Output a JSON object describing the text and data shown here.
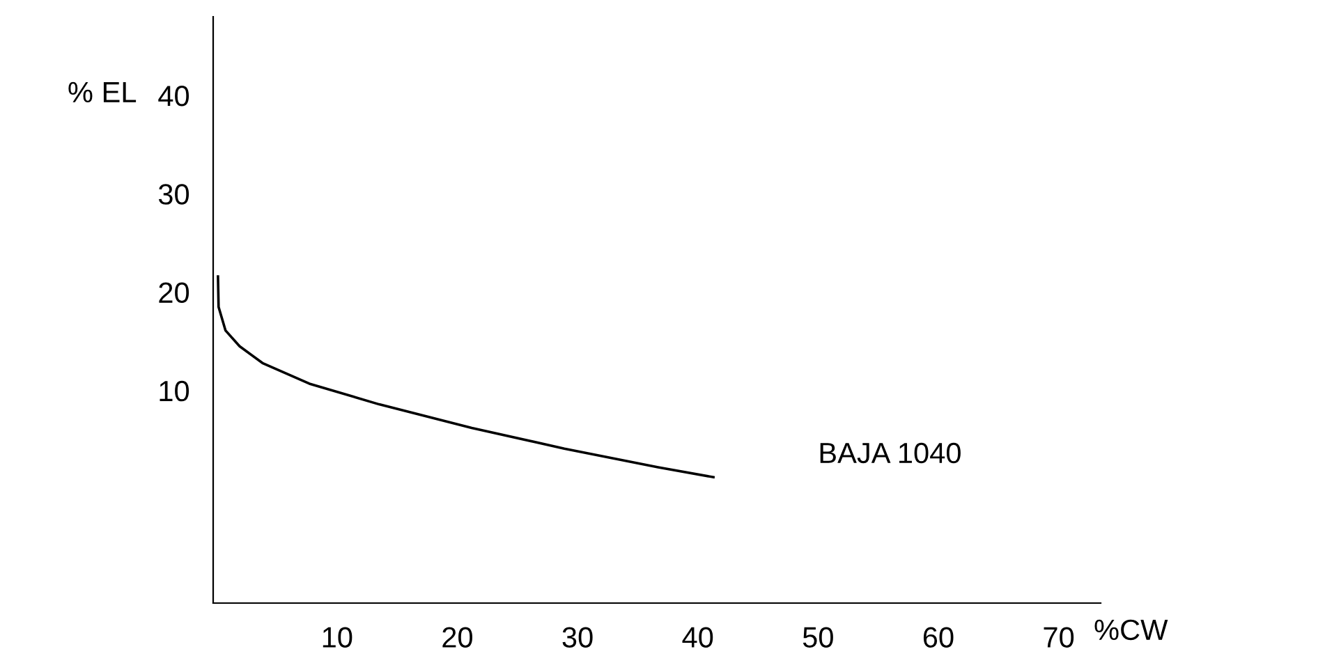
{
  "chart_data": {
    "type": "line",
    "xlabel": "%CW",
    "ylabel": "% EL",
    "series": [
      {
        "name": "BAJA 1040",
        "color": "#000000",
        "x": [
          0.1,
          0.15,
          0.73,
          1.9,
          3.8,
          7.7,
          13.5,
          21.2,
          28.9,
          36.7,
          41.3
        ],
        "values": [
          21.6,
          18.5,
          16.1,
          14.5,
          12.8,
          10.7,
          8.6,
          6.2,
          4.1,
          2.2,
          1.2
        ]
      }
    ],
    "xlim": [
      -0.3,
      73.5
    ],
    "ylim": [
      -11.6,
      48
    ],
    "xticks": [
      10,
      20,
      30,
      40,
      50,
      60,
      70
    ],
    "yticks": [
      10,
      20,
      30,
      40
    ],
    "grid": false,
    "legend": false,
    "marker": "none",
    "line_style": "solid"
  }
}
